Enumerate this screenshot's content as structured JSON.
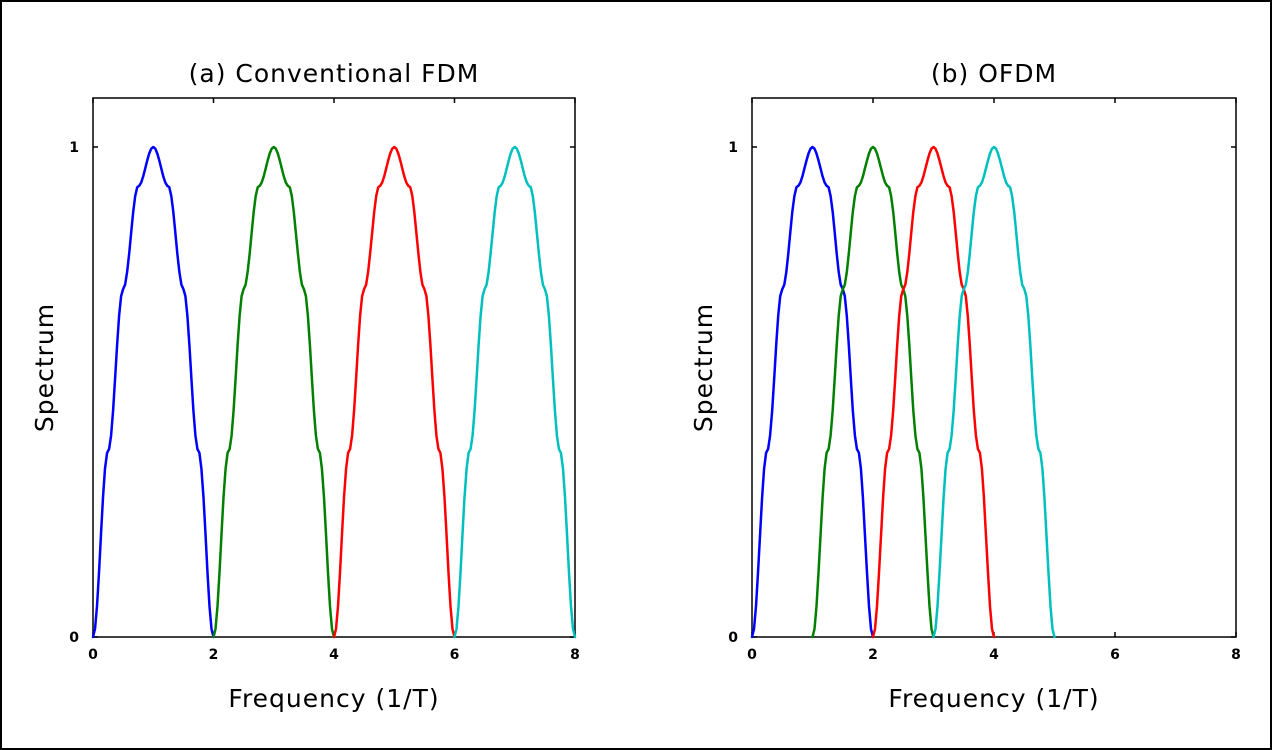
{
  "chart_data": [
    {
      "type": "line",
      "title": "(a) Conventional FDM",
      "xlabel": "Frequency (1/T)",
      "ylabel": "Spectrum",
      "xlim": [
        0,
        8
      ],
      "ylim": [
        0,
        1.1
      ],
      "xticks": [
        0,
        2,
        4,
        6,
        8
      ],
      "xtick_labels": [
        "0",
        "2",
        "4",
        "6",
        "8"
      ],
      "yticks": [
        0,
        1
      ],
      "ytick_labels": [
        "0",
        "1"
      ],
      "grid": false,
      "legend": "none",
      "series": [
        {
          "color": "#0000ff",
          "x": [
            0,
            0.25,
            0.5,
            0.75,
            1,
            1.25,
            1.5,
            1.75,
            2
          ],
          "y": [
            0,
            0.38,
            0.71,
            0.92,
            1,
            0.92,
            0.71,
            0.38,
            0
          ]
        },
        {
          "color": "#008000",
          "x": [
            2,
            2.25,
            2.5,
            2.75,
            3,
            3.25,
            3.5,
            3.75,
            4
          ],
          "y": [
            0,
            0.38,
            0.71,
            0.92,
            1,
            0.92,
            0.71,
            0.38,
            0
          ]
        },
        {
          "color": "#ff0000",
          "x": [
            4,
            4.25,
            4.5,
            4.75,
            5,
            5.25,
            5.5,
            5.75,
            6
          ],
          "y": [
            0,
            0.38,
            0.71,
            0.92,
            1,
            0.92,
            0.71,
            0.38,
            0
          ]
        },
        {
          "color": "#00bfbf",
          "x": [
            6,
            6.25,
            6.5,
            6.75,
            7,
            7.25,
            7.5,
            7.75,
            8
          ],
          "y": [
            0,
            0.38,
            0.71,
            0.92,
            1,
            0.92,
            0.71,
            0.38,
            0
          ]
        }
      ]
    },
    {
      "type": "line",
      "title": "(b) OFDM",
      "xlabel": "Frequency (1/T)",
      "ylabel": "Spectrum",
      "xlim": [
        0,
        8
      ],
      "ylim": [
        0,
        1.1
      ],
      "xticks": [
        0,
        2,
        4,
        6,
        8
      ],
      "xtick_labels": [
        "0",
        "2",
        "4",
        "6",
        "8"
      ],
      "yticks": [
        0,
        1
      ],
      "ytick_labels": [
        "0",
        "1"
      ],
      "grid": false,
      "legend": "none",
      "series": [
        {
          "color": "#0000ff",
          "x": [
            0,
            0.25,
            0.5,
            0.75,
            1,
            1.25,
            1.5,
            1.75,
            2
          ],
          "y": [
            0,
            0.38,
            0.71,
            0.92,
            1,
            0.92,
            0.71,
            0.38,
            0
          ]
        },
        {
          "color": "#008000",
          "x": [
            1,
            1.25,
            1.5,
            1.75,
            2,
            2.25,
            2.5,
            2.75,
            3
          ],
          "y": [
            0,
            0.38,
            0.71,
            0.92,
            1,
            0.92,
            0.71,
            0.38,
            0
          ]
        },
        {
          "color": "#ff0000",
          "x": [
            2,
            2.25,
            2.5,
            2.75,
            3,
            3.25,
            3.5,
            3.75,
            4
          ],
          "y": [
            0,
            0.38,
            0.71,
            0.92,
            1,
            0.92,
            0.71,
            0.38,
            0
          ]
        },
        {
          "color": "#00bfbf",
          "x": [
            3,
            3.25,
            3.5,
            3.75,
            4,
            4.25,
            4.5,
            4.75,
            5
          ],
          "y": [
            0,
            0.38,
            0.71,
            0.92,
            1,
            0.92,
            0.71,
            0.38,
            0
          ]
        }
      ]
    }
  ]
}
